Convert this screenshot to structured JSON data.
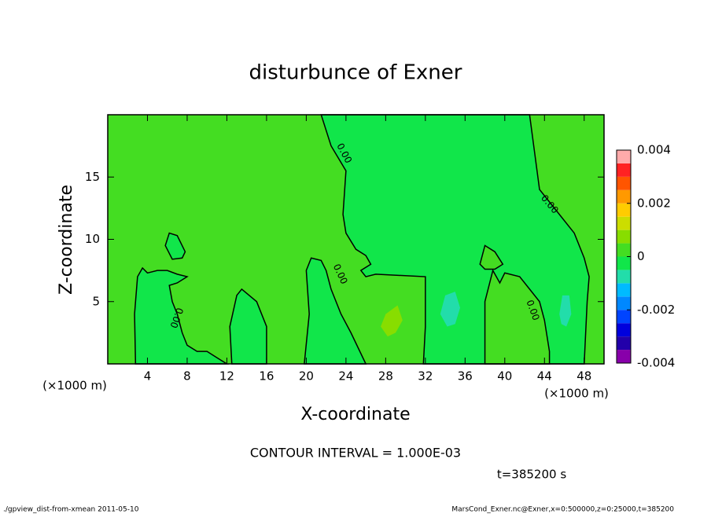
{
  "chart_data": {
    "type": "contour",
    "title": "disturbunce of Exner",
    "xlabel": "X-coordinate",
    "ylabel": "Z-coordinate",
    "x_unit_left": "(×1000 m)",
    "x_unit_right": "(×1000 m)",
    "xlim": [
      0,
      50
    ],
    "ylim": [
      0,
      20
    ],
    "xticks": [
      4,
      8,
      12,
      16,
      20,
      24,
      28,
      32,
      36,
      40,
      44,
      48
    ],
    "yticks": [
      5,
      10,
      15
    ],
    "background_value": 0.00025,
    "regions": [
      {
        "value": -0.00025,
        "points": [
          [
            21.5,
            20
          ],
          [
            42.5,
            20
          ],
          [
            43,
            17
          ],
          [
            43.5,
            14
          ],
          [
            45,
            12.5
          ],
          [
            47,
            10.5
          ],
          [
            48,
            8.5
          ],
          [
            48.5,
            7
          ],
          [
            48.3,
            5
          ],
          [
            48,
            0
          ],
          [
            31.8,
            0
          ],
          [
            32,
            3
          ],
          [
            32,
            7
          ],
          [
            27,
            7.2
          ],
          [
            26,
            7
          ],
          [
            25.5,
            7.5
          ],
          [
            26.5,
            8
          ],
          [
            26,
            8.7
          ],
          [
            25,
            9.2
          ],
          [
            24,
            10.5
          ],
          [
            23.7,
            12
          ],
          [
            24,
            15.5
          ],
          [
            22.5,
            17.5
          ]
        ]
      },
      {
        "value": 0.00025,
        "points": [
          [
            38,
            0
          ],
          [
            38,
            5
          ],
          [
            38.8,
            7.5
          ],
          [
            39.5,
            6.5
          ],
          [
            40,
            7.3
          ],
          [
            41.5,
            7
          ],
          [
            42.5,
            6
          ],
          [
            43.5,
            5
          ],
          [
            44,
            3.5
          ],
          [
            44.5,
            1
          ],
          [
            44.5,
            0
          ]
        ]
      },
      {
        "value": -0.00025,
        "points": [
          [
            2.8,
            0
          ],
          [
            2.7,
            4
          ],
          [
            3,
            7
          ],
          [
            3.5,
            7.7
          ],
          [
            4,
            7.3
          ],
          [
            5,
            7.5
          ],
          [
            6,
            7.5
          ],
          [
            7,
            7.2
          ],
          [
            8,
            7
          ],
          [
            7,
            6.5
          ],
          [
            6.2,
            6.3
          ],
          [
            6.5,
            5
          ],
          [
            7,
            4
          ],
          [
            7.5,
            2.5
          ],
          [
            8,
            1.5
          ],
          [
            9,
            1
          ],
          [
            10,
            1
          ],
          [
            11,
            0.5
          ],
          [
            12,
            0
          ]
        ]
      },
      {
        "value": -0.00025,
        "points": [
          [
            12.5,
            0
          ],
          [
            12.3,
            3
          ],
          [
            13,
            5.5
          ],
          [
            13.5,
            6
          ],
          [
            15,
            5
          ],
          [
            16,
            3
          ],
          [
            16,
            0
          ]
        ]
      },
      {
        "value": -0.00025,
        "points": [
          [
            19.8,
            0
          ],
          [
            20.3,
            4
          ],
          [
            20,
            7.5
          ],
          [
            20.5,
            8.5
          ],
          [
            21.5,
            8.3
          ],
          [
            22,
            7.5
          ],
          [
            22.5,
            6
          ],
          [
            23.5,
            4
          ],
          [
            24.5,
            2.5
          ],
          [
            26,
            0
          ]
        ]
      },
      {
        "value": -0.00025,
        "points": [
          [
            5.8,
            9.5
          ],
          [
            6.2,
            10.5
          ],
          [
            7,
            10.3
          ],
          [
            7.8,
            9
          ],
          [
            7.5,
            8.5
          ],
          [
            6.5,
            8.4
          ]
        ]
      },
      {
        "value": 0.00025,
        "points": [
          [
            37.5,
            8
          ],
          [
            38,
            9.5
          ],
          [
            39,
            9
          ],
          [
            39.8,
            8
          ],
          [
            39,
            7.6
          ],
          [
            38,
            7.6
          ]
        ]
      },
      {
        "value": 0.00075,
        "points": [
          [
            27.5,
            3
          ],
          [
            28,
            4
          ],
          [
            29.2,
            4.7
          ],
          [
            29.7,
            3.5
          ],
          [
            29,
            2.5
          ],
          [
            28.2,
            2.2
          ]
        ]
      },
      {
        "value": -0.00075,
        "points": [
          [
            33.5,
            4
          ],
          [
            34,
            5.5
          ],
          [
            35,
            5.8
          ],
          [
            35.5,
            4.5
          ],
          [
            35,
            3.2
          ],
          [
            34.2,
            3
          ]
        ]
      },
      {
        "value": -0.00075,
        "points": [
          [
            45.5,
            4
          ],
          [
            45.8,
            5.5
          ],
          [
            46.5,
            5.5
          ],
          [
            46.7,
            4
          ],
          [
            46.2,
            3
          ],
          [
            45.7,
            3.2
          ]
        ]
      }
    ],
    "contour_labels": [
      {
        "text": "0.00",
        "x": 23.8,
        "z": 16.9
      },
      {
        "text": "0.00",
        "x": 44.5,
        "z": 12.8
      },
      {
        "text": "0.00",
        "x": 23.4,
        "z": 7.2
      },
      {
        "text": "0.00",
        "x": 6.9,
        "z": 3.7
      },
      {
        "text": "0.00",
        "x": 42.8,
        "z": 4.3
      }
    ],
    "colorbar": {
      "levels": [
        -0.004,
        -0.0035,
        -0.003,
        -0.0025,
        -0.002,
        -0.0015,
        -0.001,
        -0.0005,
        0,
        0.0005,
        0.001,
        0.0015,
        0.002,
        0.0025,
        0.003,
        0.0035,
        0.004
      ],
      "colors": [
        "#8800aa",
        "#2200aa",
        "#0000dd",
        "#0044ff",
        "#0088ff",
        "#00bbff",
        "#22ddaa",
        "#11e64a",
        "#44dd22",
        "#88dd00",
        "#ccdd00",
        "#ffcc00",
        "#ff9900",
        "#ff5500",
        "#ff2222",
        "#ffaaaa"
      ],
      "ticks": [
        {
          "value": 0.004,
          "label": "0.004"
        },
        {
          "value": 0.002,
          "label": "0.002"
        },
        0,
        {
          "value": -0.002,
          "label": "-0.002"
        },
        {
          "value": -0.004,
          "label": "-0.004"
        }
      ]
    },
    "contour_interval": "CONTOUR INTERVAL = 1.000E-03",
    "time_label": "t=385200 s",
    "footer_left": "./gpview_dist-from-xmean  2011-05-10",
    "footer_right": "MarsCond_Exner.nc@Exner,x=0:500000,z=0:25000,t=385200"
  }
}
